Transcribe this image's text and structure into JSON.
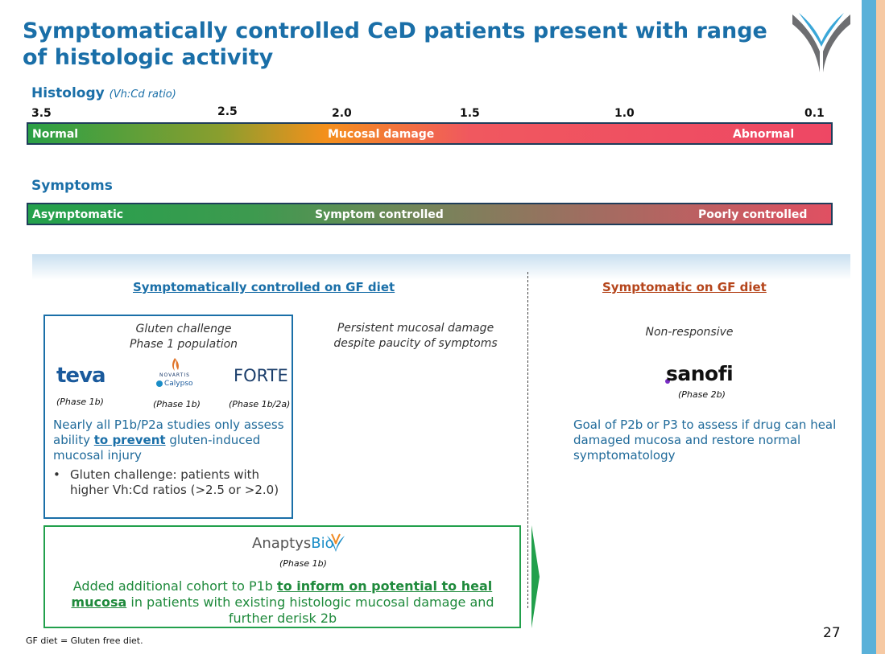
{
  "title": "Symptomatically controlled CeD patients present with range of histologic activity",
  "histology": {
    "label": "Histology",
    "sublabel": "(Vh:Cd ratio)",
    "ticks": [
      "3.5",
      "2.5",
      "2.0",
      "1.5",
      "1.0",
      "0.1"
    ],
    "bar_labels": [
      "Normal",
      "Mucosal damage",
      "Abnormal"
    ]
  },
  "symptoms": {
    "label": "Symptoms",
    "bar_labels": [
      "Asymptomatic",
      "Symptom controlled",
      "Poorly controlled"
    ]
  },
  "left": {
    "heading": "Symptomatically controlled on GF diet",
    "box_title_1": "Gluten challenge",
    "box_title_2": "Phase 1 population",
    "logos": [
      "teva",
      "NOVARTIS",
      "Calypso",
      "FORTE"
    ],
    "phases": [
      "(Phase 1b)",
      "(Phase 1b)",
      "(Phase 1b/2a)"
    ],
    "text_pre": "Nearly all P1b/P2a studies only assess ability ",
    "text_bold": "to prevent",
    "text_post": " gluten-induced mucosal injury",
    "bullet": "Gluten challenge: patients with higher Vh:Cd ratios (>2.5 or >2.0)",
    "mid_note_1": "Persistent mucosal damage",
    "mid_note_2": "despite paucity of symptoms"
  },
  "anaptys": {
    "name_a": "Anaptys",
    "name_b": "Bio",
    "phase": "(Phase 1b)",
    "text_pre": "Added additional cohort to P1b ",
    "text_bold_1": "to inform on potential to heal",
    "text_bold_2": "mucosa",
    "text_post": " in patients with existing histologic mucosal damage and further derisk 2b"
  },
  "right": {
    "heading": "Symptomatic on GF diet",
    "note": "Non-responsive",
    "logo": "sanofi",
    "phase": "(Phase 2b)",
    "text": "Goal of P2b or P3 to assess if drug can heal damaged mucosa and restore normal symptomatology"
  },
  "footnote": "GF diet = Gluten free diet.",
  "page_number": "27",
  "colors": {
    "accent": "#1a6fa8",
    "green": "#22a04c",
    "rust": "#b5451b",
    "red": "#ee4764"
  }
}
